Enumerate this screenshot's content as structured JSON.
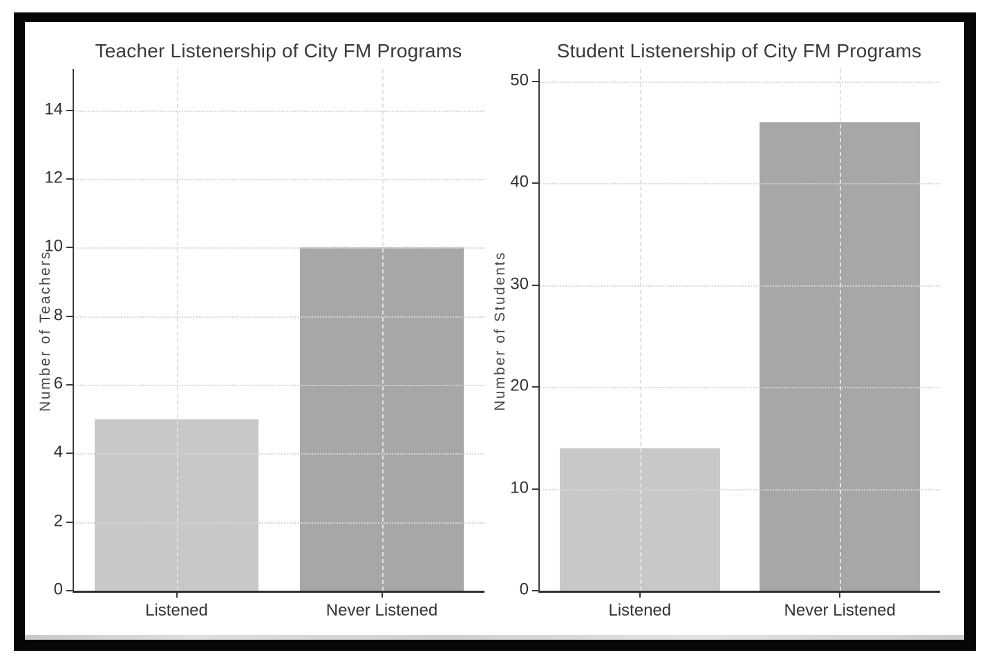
{
  "figure": {
    "background": "#ffffff",
    "frame_color": "#070707",
    "canvas_color": "#ffffff",
    "bottom_strip_color": "#d4d4d4",
    "text_color": "#333333",
    "axis_label_color": "#4a4a4a",
    "spine_color": "#3a3a3a",
    "grid_color": "#d8d8d8"
  },
  "chart_data": [
    {
      "type": "bar",
      "title": "Teacher Listenership of City FM Programs",
      "xlabel": "",
      "ylabel": "Number of Teachers",
      "categories": [
        "Listened",
        "Never Listened"
      ],
      "values": [
        5,
        10
      ],
      "bar_colors": [
        "#c8c8c8",
        "#a7a7a7"
      ],
      "yticks": [
        0,
        2,
        4,
        6,
        8,
        10,
        12,
        14
      ],
      "ylim": [
        0,
        15.2
      ],
      "grid": "horizontal dotted and vertical dashed at category centers",
      "legend": "none"
    },
    {
      "type": "bar",
      "title": "Student Listenership of City FM Programs",
      "xlabel": "",
      "ylabel": "Number of Students",
      "categories": [
        "Listened",
        "Never Listened"
      ],
      "values": [
        14,
        46
      ],
      "bar_colors": [
        "#c8c8c8",
        "#a7a7a7"
      ],
      "yticks": [
        0,
        10,
        20,
        30,
        40,
        50
      ],
      "ylim": [
        0,
        51.2
      ],
      "grid": "horizontal dotted and vertical dashed at category centers",
      "legend": "none"
    }
  ]
}
